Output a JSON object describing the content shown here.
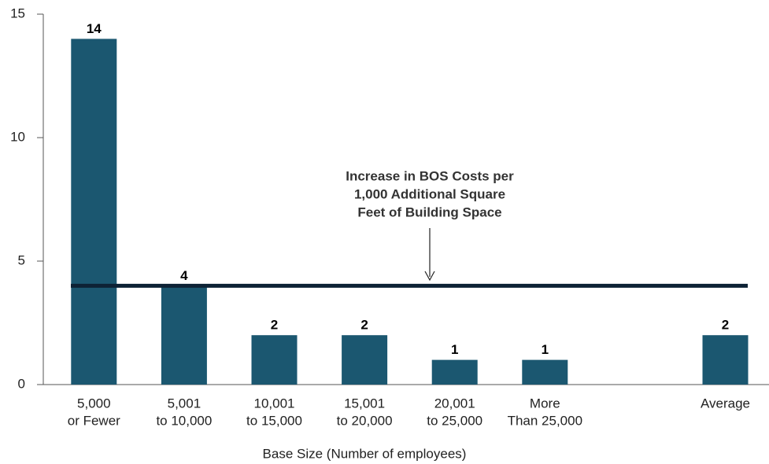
{
  "chart_data": {
    "type": "bar",
    "categories": [
      [
        "5,000",
        "or Fewer"
      ],
      [
        "5,001",
        "to 10,000"
      ],
      [
        "10,001",
        "to 15,000"
      ],
      [
        "15,001",
        "to 20,000"
      ],
      [
        "20,001",
        "to 25,000"
      ],
      [
        "More",
        "Than 25,000"
      ],
      null,
      [
        "Average"
      ]
    ],
    "values": [
      14,
      4,
      2,
      2,
      1,
      1,
      null,
      2
    ],
    "color": "#1b5770",
    "ylim": [
      0,
      15
    ],
    "yticks": [
      0,
      5,
      10,
      15
    ],
    "x_label": "Base Size (Number of employees)",
    "reference_line": {
      "value": 4,
      "color": "#0d2235",
      "label": [
        "Increase in BOS Costs per",
        "1,000 Additional Square",
        "Feet of Building Space"
      ]
    }
  }
}
